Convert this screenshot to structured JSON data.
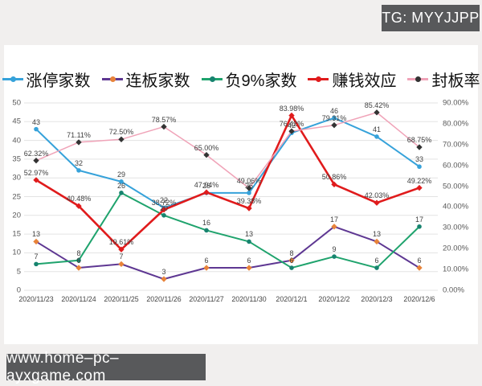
{
  "header": {
    "tg_badge": "TG: MYYJJPP"
  },
  "footer": {
    "site": "www.home–pc–ayxgame.com"
  },
  "colors": {
    "badge_bg": "#58595b",
    "panel_bg": "#ffffff",
    "page_bg": "#f1efee",
    "gridline": "#e3e3e3",
    "label_text": "#404040",
    "axis_text": "#595959"
  },
  "chart_data": {
    "type": "line",
    "categories": [
      "2020/11/23",
      "2020/11/24",
      "2020/11/25",
      "2020/11/26",
      "2020/11/27",
      "2020/11/30",
      "2020/12/1",
      "2020/12/2",
      "2020/12/3",
      "2020/12/6"
    ],
    "left_axis": {
      "min": 0,
      "max": 50,
      "ticks": [
        0,
        5,
        10,
        15,
        20,
        25,
        30,
        35,
        40,
        45,
        50
      ]
    },
    "right_axis": {
      "min": 0,
      "max": 90,
      "ticks": [
        "0.00%",
        "10.00%",
        "20.00%",
        "30.00%",
        "40.00%",
        "50.00%",
        "60.00%",
        "70.00%",
        "80.00%",
        "90.00%"
      ]
    },
    "grid": true,
    "legend_position": "top",
    "series": [
      {
        "name": "涨停家数",
        "axis": "left",
        "color": "#36a2da",
        "marker_color": "#36a2da",
        "marker_shape": "circle",
        "line_width": 2,
        "values": [
          43,
          32,
          29,
          22,
          26,
          26,
          42,
          46,
          41,
          33
        ],
        "labels": [
          "43",
          "32",
          "29",
          "22",
          "26",
          "26",
          "42",
          "46",
          "41",
          "33"
        ]
      },
      {
        "name": "连板家数",
        "axis": "left",
        "color": "#5e3792",
        "marker_color": "#e8833a",
        "marker_shape": "diamond",
        "line_width": 2,
        "values": [
          13,
          6,
          7,
          3,
          6,
          6,
          8,
          17,
          13,
          6
        ],
        "labels": [
          "13",
          "6",
          "7",
          "3",
          "6",
          "6",
          "8",
          "17",
          "13",
          "6"
        ]
      },
      {
        "name": "负9%家数",
        "axis": "left",
        "color": "#1fa36d",
        "marker_color": "#17836f",
        "marker_shape": "circle",
        "line_width": 2,
        "values": [
          7,
          8,
          26,
          20,
          16,
          13,
          6,
          9,
          6,
          17
        ],
        "labels": [
          "7",
          "8",
          "26",
          "20",
          "16",
          "13",
          "6",
          "9",
          "6",
          "17"
        ]
      },
      {
        "name": "赚钱效应",
        "axis": "right",
        "color": "#e01b1c",
        "marker_color": "#e01b1c",
        "marker_shape": "diamond",
        "line_width": 2.6,
        "values": [
          52.97,
          40.48,
          19.61,
          38.72,
          47.04,
          39.38,
          83.98,
          50.86,
          42.03,
          49.22
        ],
        "labels": [
          "52.97%",
          "40.48%",
          "19.61%",
          "38.72%",
          "47.04%",
          "39.38%",
          "83.98%",
          "50.86%",
          "42.03%",
          "49.22%"
        ]
      },
      {
        "name": "封板率",
        "axis": "right",
        "color": "#f0a3b8",
        "marker_color": "#333333",
        "marker_shape": "diamond",
        "line_width": 1.5,
        "values": [
          62.32,
          71.11,
          72.5,
          78.57,
          65.0,
          49.06,
          76.42,
          79.31,
          85.42,
          68.75
        ],
        "labels": [
          "62.32%",
          "71.11%",
          "72.50%",
          "78.57%",
          "65.00%",
          "49.06%",
          "76.42%",
          "79.31%",
          "85.42%",
          "68.75%"
        ]
      }
    ]
  }
}
